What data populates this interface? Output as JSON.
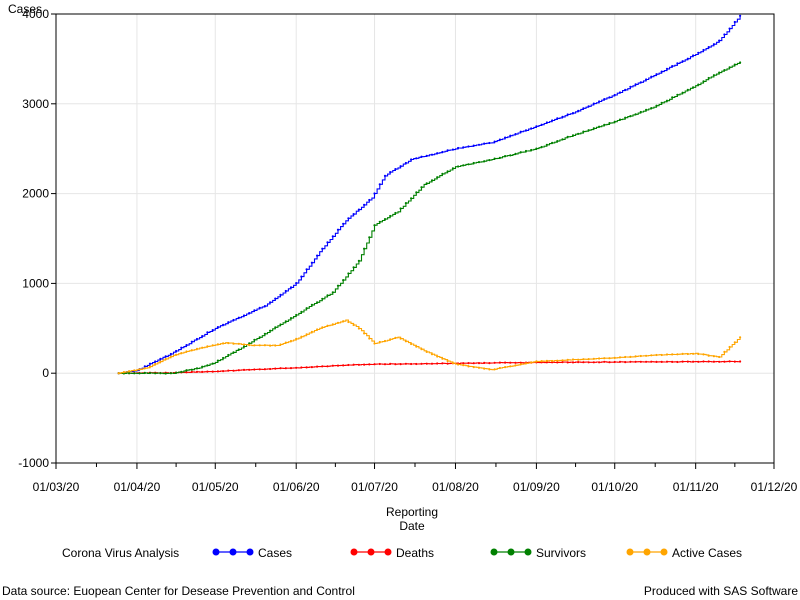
{
  "chart_data": {
    "type": "line",
    "ylabel": "Cases",
    "xlabel_line1": "Reporting",
    "xlabel_line2": "Date",
    "ylim": [
      -1000,
      4000
    ],
    "xlim": [
      "2020-03-01",
      "2020-12-01"
    ],
    "yticks": [
      -1000,
      0,
      1000,
      2000,
      3000,
      4000
    ],
    "yticks_labels": [
      "-1000",
      "0",
      "1000",
      "2000",
      "3000",
      "4000"
    ],
    "xticks": [
      "2020-03-01",
      "2020-04-01",
      "2020-05-01",
      "2020-06-01",
      "2020-07-01",
      "2020-08-01",
      "2020-09-01",
      "2020-10-01",
      "2020-11-01",
      "2020-12-01"
    ],
    "xticks_labels": [
      "01/03/20",
      "01/04/20",
      "01/05/20",
      "01/06/20",
      "01/07/20",
      "01/08/20",
      "01/09/20",
      "01/10/20",
      "01/11/20",
      "01/12/20"
    ],
    "grid": true,
    "legend_title": "Corona Virus Analysis",
    "legend_position": "bottom",
    "series": [
      {
        "name": "Cases",
        "color": "#0000ff",
        "points": [
          [
            "2020-03-25",
            0
          ],
          [
            "2020-04-01",
            30
          ],
          [
            "2020-04-08",
            130
          ],
          [
            "2020-04-15",
            230
          ],
          [
            "2020-04-22",
            350
          ],
          [
            "2020-05-01",
            500
          ],
          [
            "2020-05-10",
            620
          ],
          [
            "2020-05-20",
            750
          ],
          [
            "2020-06-01",
            1000
          ],
          [
            "2020-06-10",
            1350
          ],
          [
            "2020-06-20",
            1700
          ],
          [
            "2020-06-30",
            1950
          ],
          [
            "2020-07-05",
            2200
          ],
          [
            "2020-07-15",
            2380
          ],
          [
            "2020-08-01",
            2500
          ],
          [
            "2020-08-15",
            2570
          ],
          [
            "2020-09-01",
            2750
          ],
          [
            "2020-09-15",
            2900
          ],
          [
            "2020-10-01",
            3100
          ],
          [
            "2020-10-15",
            3300
          ],
          [
            "2020-11-01",
            3550
          ],
          [
            "2020-11-10",
            3700
          ],
          [
            "2020-11-18",
            3980
          ]
        ]
      },
      {
        "name": "Deaths",
        "color": "#ff0000",
        "points": [
          [
            "2020-03-25",
            0
          ],
          [
            "2020-04-15",
            5
          ],
          [
            "2020-05-01",
            20
          ],
          [
            "2020-05-15",
            40
          ],
          [
            "2020-06-01",
            60
          ],
          [
            "2020-06-20",
            90
          ],
          [
            "2020-07-01",
            100
          ],
          [
            "2020-08-01",
            110
          ],
          [
            "2020-09-01",
            120
          ],
          [
            "2020-10-01",
            125
          ],
          [
            "2020-11-01",
            128
          ],
          [
            "2020-11-18",
            130
          ]
        ]
      },
      {
        "name": "Survivors",
        "color": "#008000",
        "points": [
          [
            "2020-03-25",
            0
          ],
          [
            "2020-04-15",
            0
          ],
          [
            "2020-04-25",
            60
          ],
          [
            "2020-05-01",
            120
          ],
          [
            "2020-05-15",
            350
          ],
          [
            "2020-06-01",
            650
          ],
          [
            "2020-06-15",
            900
          ],
          [
            "2020-06-25",
            1250
          ],
          [
            "2020-07-01",
            1650
          ],
          [
            "2020-07-10",
            1800
          ],
          [
            "2020-07-20",
            2100
          ],
          [
            "2020-08-01",
            2300
          ],
          [
            "2020-08-15",
            2380
          ],
          [
            "2020-09-01",
            2500
          ],
          [
            "2020-09-15",
            2650
          ],
          [
            "2020-10-01",
            2800
          ],
          [
            "2020-10-15",
            2950
          ],
          [
            "2020-11-01",
            3200
          ],
          [
            "2020-11-10",
            3350
          ],
          [
            "2020-11-18",
            3460
          ]
        ]
      },
      {
        "name": "Active Cases",
        "color": "#ffa500",
        "points": [
          [
            "2020-03-25",
            0
          ],
          [
            "2020-04-05",
            60
          ],
          [
            "2020-04-15",
            200
          ],
          [
            "2020-04-25",
            280
          ],
          [
            "2020-05-05",
            340
          ],
          [
            "2020-05-15",
            310
          ],
          [
            "2020-05-25",
            310
          ],
          [
            "2020-06-01",
            380
          ],
          [
            "2020-06-10",
            500
          ],
          [
            "2020-06-20",
            590
          ],
          [
            "2020-06-25",
            500
          ],
          [
            "2020-07-01",
            330
          ],
          [
            "2020-07-10",
            400
          ],
          [
            "2020-07-20",
            250
          ],
          [
            "2020-08-01",
            100
          ],
          [
            "2020-08-15",
            40
          ],
          [
            "2020-09-01",
            130
          ],
          [
            "2020-09-15",
            150
          ],
          [
            "2020-10-01",
            170
          ],
          [
            "2020-10-15",
            200
          ],
          [
            "2020-11-01",
            220
          ],
          [
            "2020-11-10",
            180
          ],
          [
            "2020-11-18",
            400
          ]
        ]
      }
    ]
  },
  "footer": {
    "source": "Data source: Euopean Center for Desease Prevention and Control",
    "produced": "Produced with SAS Software"
  }
}
